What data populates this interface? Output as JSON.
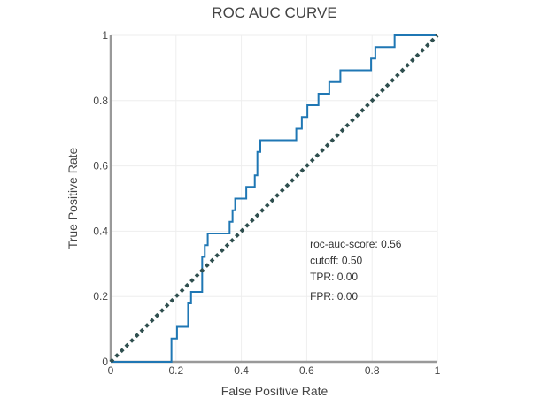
{
  "chart_data": {
    "type": "line",
    "title": "ROC AUC CURVE",
    "xlabel": "False Positive Rate",
    "ylabel": "True Positive Rate",
    "xlim": [
      0,
      1
    ],
    "ylim": [
      0,
      1
    ],
    "xticks": [
      "0",
      "0.2",
      "0.4",
      "0.6",
      "0.8",
      "1"
    ],
    "xtick_values": [
      0,
      0.2,
      0.4,
      0.6,
      0.8,
      1
    ],
    "yticks": [
      "0",
      "0.2",
      "0.4",
      "0.6",
      "0.8",
      "1"
    ],
    "ytick_values": [
      0,
      0.2,
      0.4,
      0.6,
      0.8,
      1
    ],
    "grid": true,
    "series": [
      {
        "color": "#1f77b4",
        "style": "solid",
        "x": [
          0,
          0,
          0.186,
          0.186,
          0.203,
          0.203,
          0.237,
          0.237,
          0.246,
          0.246,
          0.28,
          0.28,
          0.288,
          0.288,
          0.297,
          0.297,
          0.364,
          0.364,
          0.373,
          0.373,
          0.381,
          0.381,
          0.415,
          0.415,
          0.441,
          0.441,
          0.449,
          0.449,
          0.458,
          0.458,
          0.568,
          0.568,
          0.585,
          0.585,
          0.602,
          0.602,
          0.636,
          0.636,
          0.669,
          0.669,
          0.703,
          0.703,
          0.797,
          0.797,
          0.81,
          0.81,
          0.869,
          0.869,
          1
        ],
        "y": [
          0,
          0,
          0,
          0.071,
          0.071,
          0.107,
          0.107,
          0.179,
          0.179,
          0.214,
          0.214,
          0.321,
          0.321,
          0.357,
          0.357,
          0.393,
          0.393,
          0.429,
          0.429,
          0.464,
          0.464,
          0.5,
          0.5,
          0.536,
          0.536,
          0.571,
          0.571,
          0.643,
          0.643,
          0.679,
          0.679,
          0.714,
          0.714,
          0.75,
          0.75,
          0.786,
          0.786,
          0.821,
          0.821,
          0.857,
          0.857,
          0.893,
          0.893,
          0.929,
          0.929,
          0.964,
          0.964,
          1,
          1
        ]
      },
      {
        "color": "#2f4f4f",
        "style": "dotted",
        "x": [
          0,
          1
        ],
        "y": [
          0,
          1
        ]
      }
    ],
    "annotations": [
      {
        "text": "roc-auc-score: 0.56",
        "x": 0.61,
        "y": 0.36
      },
      {
        "text": "cutoff: 0.50",
        "x": 0.61,
        "y": 0.31
      },
      {
        "text": "TPR: 0.00",
        "x": 0.61,
        "y": 0.26
      },
      {
        "text": "FPR: 0.00",
        "x": 0.61,
        "y": 0.2
      }
    ]
  }
}
